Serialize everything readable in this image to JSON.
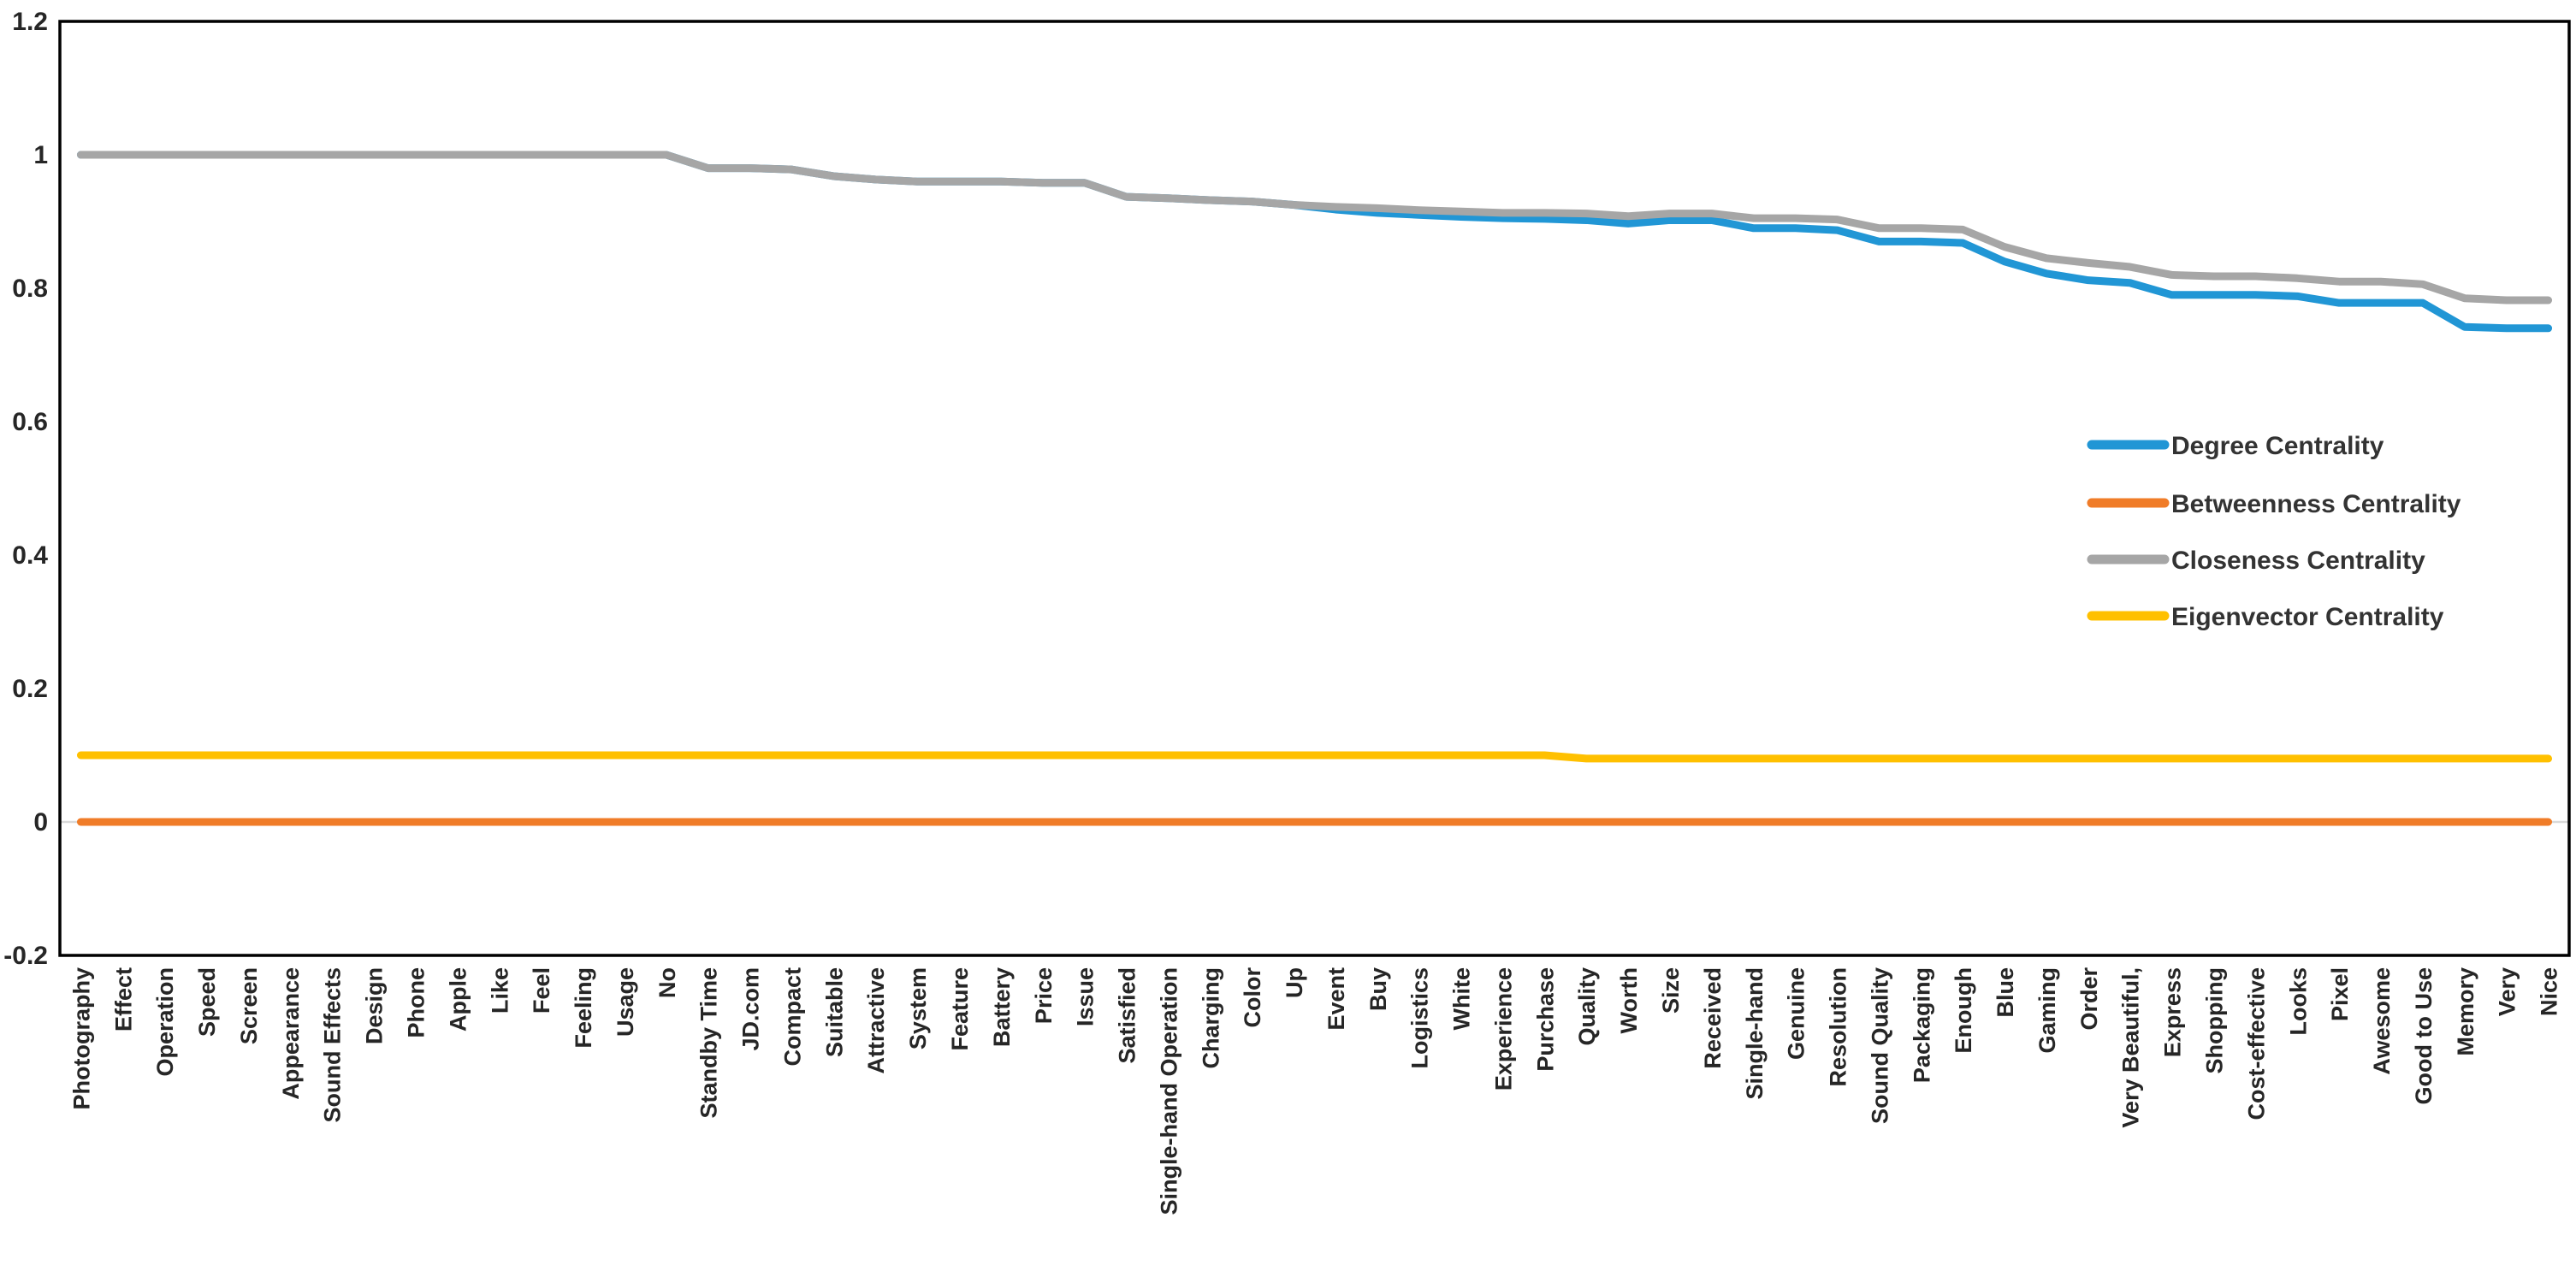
{
  "chart_data": {
    "type": "line",
    "title": "",
    "xlabel": "",
    "ylabel": "",
    "ylim": [
      -0.2,
      1.2
    ],
    "ytick_labels": [
      "-0.2",
      "0",
      "0.2",
      "0.4",
      "0.6",
      "0.8",
      "1",
      "1.2"
    ],
    "yticks": [
      -0.2,
      0,
      0.2,
      0.4,
      0.6,
      0.8,
      1,
      1.2
    ],
    "grid": false,
    "zero_line_color": "#D9D9D9",
    "axis_color": "#000000",
    "legend_position": "right-middle",
    "categories": [
      "Photography",
      "Effect",
      "Operation",
      "Speed",
      "Screen",
      "Appearance",
      "Sound Effects",
      "Design",
      "Phone",
      "Apple",
      "Like",
      "Feel",
      "Feeling",
      "Usage",
      "No",
      "Standby Time",
      "JD.com",
      "Compact",
      "Suitable",
      "Attractive",
      "System",
      "Feature",
      "Battery",
      "Price",
      "Issue",
      "Satisfied",
      "Single-hand Operation",
      "Charging",
      "Color",
      "Up",
      "Event",
      "Buy",
      "Logistics",
      "White",
      "Experience",
      "Purchase",
      "Quality",
      "Worth",
      "Size",
      "Received",
      "Single-hand",
      "Genuine",
      "Resolution",
      "Sound Quality",
      "Packaging",
      "Enough",
      "Blue",
      "Gaming",
      "Order",
      "Very Beautiful,",
      "Express",
      "Shopping",
      "Cost-effective",
      "Looks",
      "Pixel",
      "Awesome",
      "Good to Use",
      "Memory",
      "Very",
      "Nice"
    ],
    "series": [
      {
        "name": "Degree Centrality",
        "color": "#2196D5",
        "values": [
          1,
          1,
          1,
          1,
          1,
          1,
          1,
          1,
          1,
          1,
          1,
          1,
          1,
          1,
          1,
          0.98,
          0.98,
          0.978,
          0.968,
          0.963,
          0.96,
          0.96,
          0.96,
          0.958,
          0.958,
          0.937,
          0.935,
          0.932,
          0.93,
          0.925,
          0.918,
          0.913,
          0.91,
          0.907,
          0.905,
          0.904,
          0.902,
          0.897,
          0.902,
          0.902,
          0.89,
          0.89,
          0.887,
          0.87,
          0.87,
          0.868,
          0.84,
          0.822,
          0.812,
          0.808,
          0.79,
          0.79,
          0.79,
          0.788,
          0.778,
          0.778,
          0.778,
          0.742,
          0.74,
          0.74
        ]
      },
      {
        "name": "Betweenness Centrality",
        "color": "#F07C28",
        "values": [
          0,
          0,
          0,
          0,
          0,
          0,
          0,
          0,
          0,
          0,
          0,
          0,
          0,
          0,
          0,
          0,
          0,
          0,
          0,
          0,
          0,
          0,
          0,
          0,
          0,
          0,
          0,
          0,
          0,
          0,
          0,
          0,
          0,
          0,
          0,
          0,
          0,
          0,
          0,
          0,
          0,
          0,
          0,
          0,
          0,
          0,
          0,
          0,
          0,
          0,
          0,
          0,
          0,
          0,
          0,
          0,
          0,
          0,
          0,
          0
        ]
      },
      {
        "name": "Closeness Centrality",
        "color": "#A6A6A6",
        "values": [
          1,
          1,
          1,
          1,
          1,
          1,
          1,
          1,
          1,
          1,
          1,
          1,
          1,
          1,
          1,
          0.98,
          0.98,
          0.978,
          0.968,
          0.963,
          0.96,
          0.96,
          0.96,
          0.958,
          0.958,
          0.937,
          0.935,
          0.932,
          0.93,
          0.925,
          0.922,
          0.92,
          0.917,
          0.915,
          0.913,
          0.913,
          0.912,
          0.908,
          0.912,
          0.912,
          0.905,
          0.905,
          0.903,
          0.89,
          0.89,
          0.888,
          0.862,
          0.845,
          0.838,
          0.832,
          0.82,
          0.818,
          0.818,
          0.815,
          0.81,
          0.81,
          0.806,
          0.785,
          0.782,
          0.782
        ]
      },
      {
        "name": "Eigenvector Centrality",
        "color": "#FFC000",
        "values": [
          0.1,
          0.1,
          0.1,
          0.1,
          0.1,
          0.1,
          0.1,
          0.1,
          0.1,
          0.1,
          0.1,
          0.1,
          0.1,
          0.1,
          0.1,
          0.1,
          0.1,
          0.1,
          0.1,
          0.1,
          0.1,
          0.1,
          0.1,
          0.1,
          0.1,
          0.1,
          0.1,
          0.1,
          0.1,
          0.1,
          0.1,
          0.1,
          0.1,
          0.1,
          0.1,
          0.1,
          0.095,
          0.095,
          0.095,
          0.095,
          0.095,
          0.095,
          0.095,
          0.095,
          0.095,
          0.095,
          0.095,
          0.095,
          0.095,
          0.095,
          0.095,
          0.095,
          0.095,
          0.095,
          0.095,
          0.095,
          0.095,
          0.095,
          0.095,
          0.095
        ]
      }
    ],
    "legend": [
      "Degree Centrality",
      "Betweenness Centrality",
      "Closeness Centrality",
      "Eigenvector Centrality"
    ]
  }
}
